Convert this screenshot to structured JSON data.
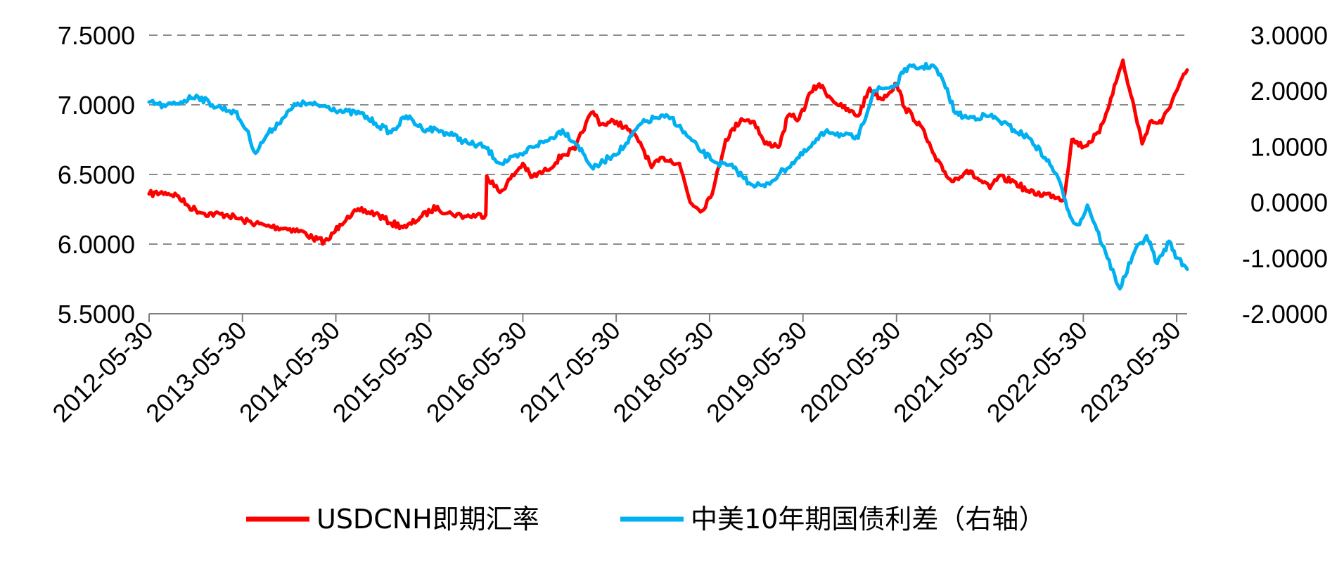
{
  "chart_data": {
    "type": "line",
    "title": "",
    "xlabel": "",
    "ylabel_left": "",
    "ylabel_right": "",
    "x_tick_labels": [
      "2012-05-30",
      "2013-05-30",
      "2014-05-30",
      "2015-05-30",
      "2016-05-30",
      "2017-05-30",
      "2018-05-30",
      "2019-05-30",
      "2020-05-30",
      "2021-05-30",
      "2022-05-30",
      "2023-05-30"
    ],
    "x_range": [
      "2012-05-30",
      "2023-07-10"
    ],
    "y_left": {
      "range": [
        5.5,
        7.5
      ],
      "ticks": [
        "5.5000",
        "6.0000",
        "6.5000",
        "7.0000",
        "7.5000"
      ]
    },
    "y_right": {
      "range": [
        -2.0,
        3.0
      ],
      "ticks": [
        "-2.0000",
        "-1.0000",
        "0.0000",
        "1.0000",
        "2.0000",
        "3.0000"
      ]
    },
    "grid": "horizontal dashed",
    "legend_position": "bottom",
    "series": [
      {
        "name": "USDCNH即期汇率",
        "axis": "left",
        "color": "#ff0000",
        "points": [
          [
            "2012-05-30",
            6.36
          ],
          [
            "2012-08-01",
            6.37
          ],
          [
            "2012-09-15",
            6.35
          ],
          [
            "2012-11-01",
            6.27
          ],
          [
            "2013-01-01",
            6.22
          ],
          [
            "2013-04-01",
            6.21
          ],
          [
            "2013-06-01",
            6.17
          ],
          [
            "2013-09-01",
            6.13
          ],
          [
            "2013-12-01",
            6.11
          ],
          [
            "2014-02-01",
            6.08
          ],
          [
            "2014-03-01",
            6.04
          ],
          [
            "2014-04-15",
            6.02
          ],
          [
            "2014-05-01",
            6.03
          ],
          [
            "2014-06-15",
            6.14
          ],
          [
            "2014-07-15",
            6.2
          ],
          [
            "2014-09-01",
            6.24
          ],
          [
            "2014-11-01",
            6.22
          ],
          [
            "2015-01-01",
            6.15
          ],
          [
            "2015-03-01",
            6.12
          ],
          [
            "2015-05-01",
            6.2
          ],
          [
            "2015-07-01",
            6.27
          ],
          [
            "2015-08-05",
            6.22
          ],
          [
            "2015-08-25",
            6.22
          ],
          [
            "2015-10-15",
            6.2
          ],
          [
            "2016-01-06",
            6.21
          ],
          [
            "2016-01-10",
            6.49
          ],
          [
            "2016-03-01",
            6.37
          ],
          [
            "2016-05-30",
            6.58
          ],
          [
            "2016-07-01",
            6.48
          ],
          [
            "2016-09-01",
            6.53
          ],
          [
            "2016-11-01",
            6.64
          ],
          [
            "2016-12-20",
            6.68
          ],
          [
            "2017-02-01",
            6.87
          ],
          [
            "2017-03-01",
            6.95
          ],
          [
            "2017-04-01",
            6.86
          ],
          [
            "2017-06-01",
            6.88
          ],
          [
            "2017-07-15",
            6.82
          ],
          [
            "2017-09-01",
            6.73
          ],
          [
            "2017-10-15",
            6.55
          ],
          [
            "2017-12-01",
            6.62
          ],
          [
            "2018-02-01",
            6.58
          ],
          [
            "2018-03-15",
            6.3
          ],
          [
            "2018-05-01",
            6.24
          ],
          [
            "2018-06-15",
            6.4
          ],
          [
            "2018-08-01",
            6.75
          ],
          [
            "2018-10-01",
            6.9
          ],
          [
            "2018-11-20",
            6.88
          ],
          [
            "2019-01-01",
            6.72
          ],
          [
            "2019-03-01",
            6.71
          ],
          [
            "2019-04-01",
            6.92
          ],
          [
            "2019-05-15",
            6.9
          ],
          [
            "2019-06-30",
            7.09
          ],
          [
            "2019-08-01",
            7.15
          ],
          [
            "2019-09-15",
            7.05
          ],
          [
            "2019-11-01",
            6.98
          ],
          [
            "2020-01-01",
            6.92
          ],
          [
            "2020-02-15",
            7.12
          ],
          [
            "2020-04-01",
            7.04
          ],
          [
            "2020-05-30",
            7.15
          ],
          [
            "2020-07-01",
            6.98
          ],
          [
            "2020-09-01",
            6.85
          ],
          [
            "2020-11-01",
            6.6
          ],
          [
            "2021-01-01",
            6.45
          ],
          [
            "2021-03-01",
            6.53
          ],
          [
            "2021-05-30",
            6.4
          ],
          [
            "2021-07-01",
            6.48
          ],
          [
            "2021-09-01",
            6.45
          ],
          [
            "2021-11-01",
            6.37
          ],
          [
            "2022-02-01",
            6.35
          ],
          [
            "2022-03-15",
            6.32
          ],
          [
            "2022-04-15",
            6.75
          ],
          [
            "2022-06-01",
            6.7
          ],
          [
            "2022-08-01",
            6.8
          ],
          [
            "2022-09-15",
            7.05
          ],
          [
            "2022-11-01",
            7.32
          ],
          [
            "2022-11-20",
            7.15
          ],
          [
            "2022-12-15",
            6.98
          ],
          [
            "2023-01-15",
            6.72
          ],
          [
            "2023-02-15",
            6.88
          ],
          [
            "2023-04-01",
            6.87
          ],
          [
            "2023-05-30",
            7.1
          ],
          [
            "2023-07-10",
            7.25
          ]
        ]
      },
      {
        "name": "中美10年期国债利差（右轴）",
        "axis": "right",
        "color": "#00b0f0",
        "points": [
          [
            "2012-05-30",
            1.8
          ],
          [
            "2012-08-01",
            1.72
          ],
          [
            "2012-10-01",
            1.8
          ],
          [
            "2012-12-01",
            1.92
          ],
          [
            "2013-02-01",
            1.75
          ],
          [
            "2013-05-01",
            1.62
          ],
          [
            "2013-06-15",
            1.3
          ],
          [
            "2013-07-20",
            0.88
          ],
          [
            "2013-09-01",
            1.2
          ],
          [
            "2013-11-01",
            1.5
          ],
          [
            "2014-01-01",
            1.78
          ],
          [
            "2014-03-01",
            1.75
          ],
          [
            "2014-05-01",
            1.72
          ],
          [
            "2014-07-01",
            1.62
          ],
          [
            "2014-09-01",
            1.6
          ],
          [
            "2014-11-01",
            1.42
          ],
          [
            "2015-01-01",
            1.25
          ],
          [
            "2015-03-01",
            1.55
          ],
          [
            "2015-05-01",
            1.33
          ],
          [
            "2015-07-01",
            1.3
          ],
          [
            "2015-09-01",
            1.2
          ],
          [
            "2015-11-01",
            1.05
          ],
          [
            "2016-01-01",
            1.0
          ],
          [
            "2016-03-01",
            0.7
          ],
          [
            "2016-05-30",
            0.85
          ],
          [
            "2016-07-01",
            1.0
          ],
          [
            "2016-09-01",
            1.1
          ],
          [
            "2016-11-01",
            1.3
          ],
          [
            "2017-01-01",
            1.02
          ],
          [
            "2017-03-01",
            0.6
          ],
          [
            "2017-05-01",
            0.8
          ],
          [
            "2017-07-01",
            1.0
          ],
          [
            "2017-09-01",
            1.4
          ],
          [
            "2017-11-01",
            1.52
          ],
          [
            "2018-01-01",
            1.52
          ],
          [
            "2018-03-01",
            1.2
          ],
          [
            "2018-05-01",
            0.9
          ],
          [
            "2018-07-01",
            0.7
          ],
          [
            "2018-09-01",
            0.62
          ],
          [
            "2018-11-01",
            0.35
          ],
          [
            "2019-01-01",
            0.28
          ],
          [
            "2019-03-01",
            0.52
          ],
          [
            "2019-05-01",
            0.75
          ],
          [
            "2019-07-01",
            1.0
          ],
          [
            "2019-09-01",
            1.3
          ],
          [
            "2019-11-01",
            1.2
          ],
          [
            "2020-01-01",
            1.15
          ],
          [
            "2020-03-01",
            2.0
          ],
          [
            "2020-05-30",
            2.1
          ],
          [
            "2020-07-01",
            2.4
          ],
          [
            "2020-09-01",
            2.42
          ],
          [
            "2020-10-20",
            2.46
          ],
          [
            "2020-12-01",
            2.15
          ],
          [
            "2021-01-15",
            1.6
          ],
          [
            "2021-03-01",
            1.52
          ],
          [
            "2021-05-30",
            1.55
          ],
          [
            "2021-07-01",
            1.48
          ],
          [
            "2021-09-01",
            1.3
          ],
          [
            "2021-11-01",
            1.15
          ],
          [
            "2022-01-01",
            0.8
          ],
          [
            "2022-02-15",
            0.5
          ],
          [
            "2022-03-15",
            0.1
          ],
          [
            "2022-04-15",
            -0.3
          ],
          [
            "2022-05-15",
            -0.4
          ],
          [
            "2022-06-15",
            -0.05
          ],
          [
            "2022-07-15",
            -0.4
          ],
          [
            "2022-09-01",
            -1.0
          ],
          [
            "2022-10-20",
            -1.55
          ],
          [
            "2022-12-15",
            -0.9
          ],
          [
            "2023-02-01",
            -0.6
          ],
          [
            "2023-03-15",
            -1.1
          ],
          [
            "2023-05-01",
            -0.7
          ],
          [
            "2023-06-01",
            -1.0
          ],
          [
            "2023-07-10",
            -1.2
          ]
        ]
      }
    ]
  }
}
